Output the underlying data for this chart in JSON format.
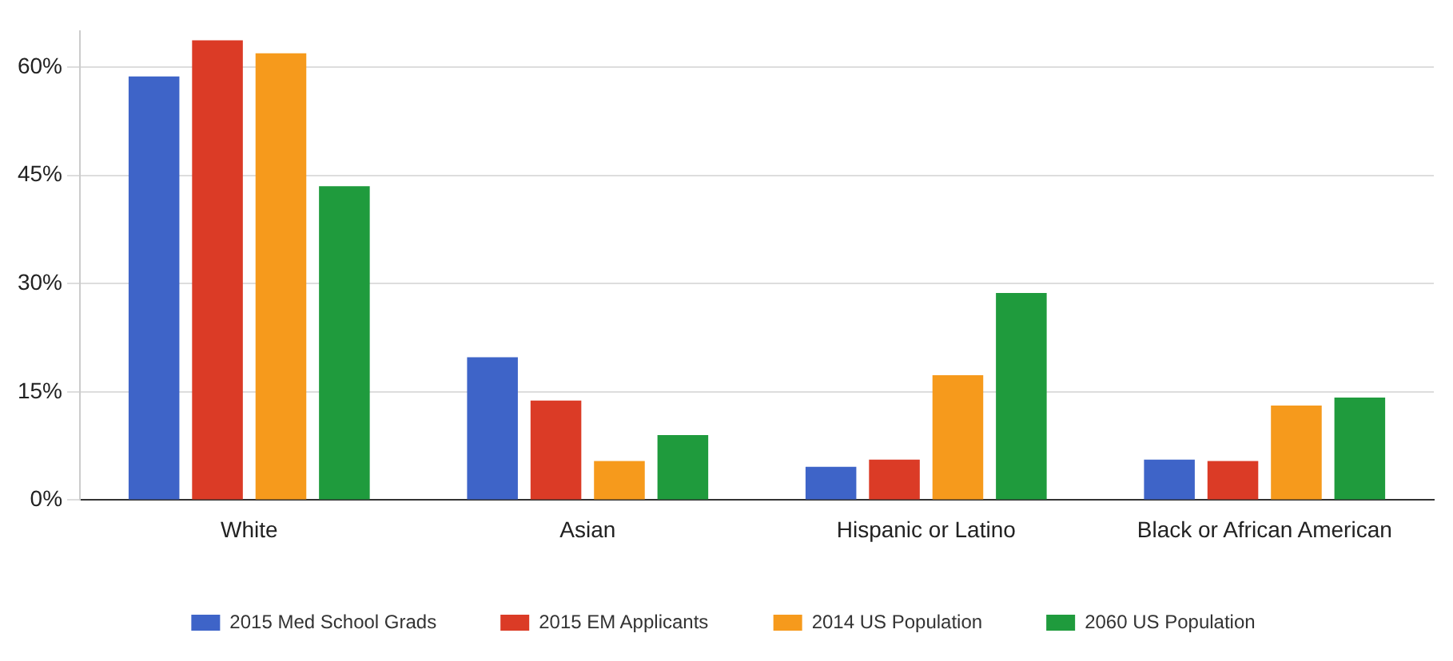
{
  "chart_data": {
    "type": "bar",
    "categories": [
      "White",
      "Asian",
      "Hispanic or Latino",
      "Black or African American"
    ],
    "series": [
      {
        "name": "2015 Med School Grads",
        "color": "#3e64c8",
        "values": [
          58.7,
          19.8,
          4.6,
          5.6
        ]
      },
      {
        "name": "2015 EM Applicants",
        "color": "#db3b26",
        "values": [
          63.7,
          13.8,
          5.6,
          5.4
        ]
      },
      {
        "name": "2014 US Population",
        "color": "#f69a1c",
        "values": [
          61.9,
          5.4,
          17.3,
          13.1
        ]
      },
      {
        "name": "2060 US Population",
        "color": "#1f9b3d",
        "values": [
          43.5,
          9.0,
          28.7,
          14.2
        ]
      }
    ],
    "ylim": [
      0,
      65
    ],
    "yticks": [
      {
        "value": 0,
        "label": "0%"
      },
      {
        "value": 15,
        "label": "15%"
      },
      {
        "value": 30,
        "label": "30%"
      },
      {
        "value": 45,
        "label": "45%"
      },
      {
        "value": 60,
        "label": "60%"
      }
    ],
    "grid": "y",
    "legend": "bottom"
  }
}
